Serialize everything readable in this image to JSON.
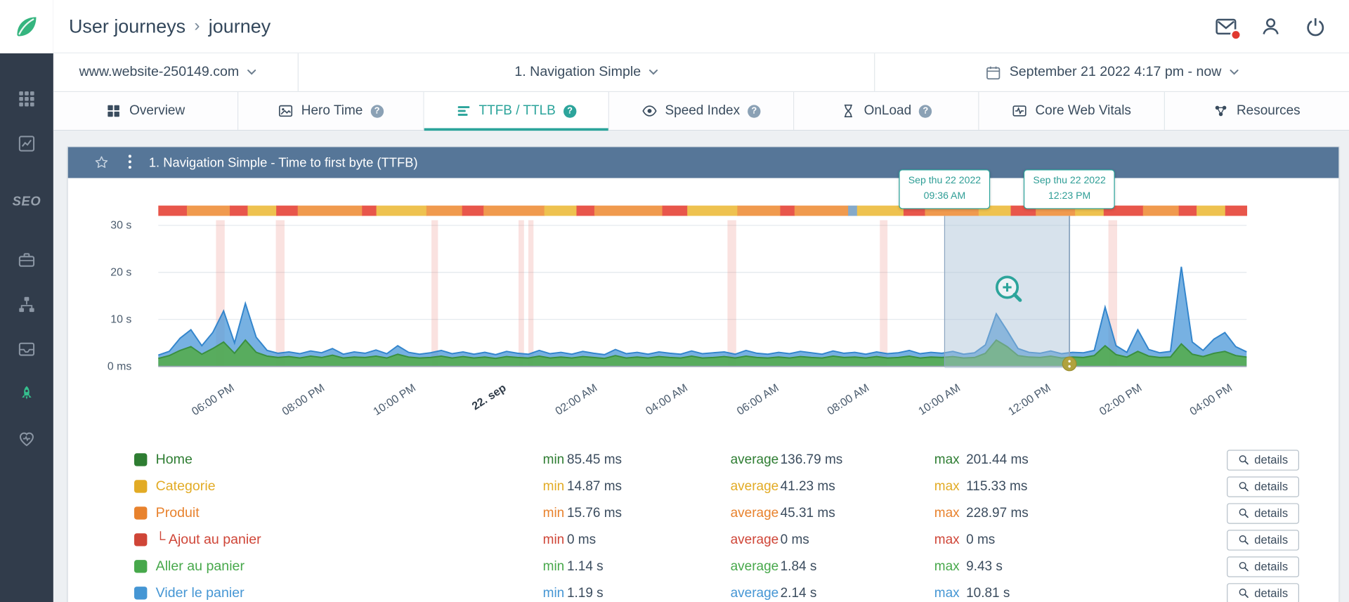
{
  "misc": {
    "help_glyph": "?",
    "indent_glyph": "└"
  },
  "colors": {
    "accent_teal": "#2ca49b",
    "sidebar_active_green": "#35c08e",
    "alert_red": "#e0392f",
    "panel_header_blue": "#567698"
  },
  "sidebar": {
    "seo_label": "SEO"
  },
  "header": {
    "breadcrumb_primary": "User journeys",
    "breadcrumb_separator": "›",
    "breadcrumb_current": "journey"
  },
  "toolbar": {
    "website": "www.website-250149.com",
    "scenario": "1. Navigation Simple",
    "date_range": "September 21 2022 4:17 pm - now"
  },
  "tabs": [
    {
      "label": "Overview",
      "active": false,
      "help": false
    },
    {
      "label": "Hero Time",
      "active": false,
      "help": true
    },
    {
      "label": "TTFB / TTLB",
      "active": true,
      "help": true
    },
    {
      "label": "Speed Index",
      "active": false,
      "help": true
    },
    {
      "label": "OnLoad",
      "active": false,
      "help": true
    },
    {
      "label": "Core Web Vitals",
      "active": false,
      "help": false
    },
    {
      "label": "Resources",
      "active": false,
      "help": false
    }
  ],
  "panel": {
    "title": "1. Navigation Simple - Time to first byte (TTFB)"
  },
  "chart_data": {
    "type": "area",
    "title": "1. Navigation Simple - Time to first byte (TTFB)",
    "unit": "seconds",
    "y_max_seconds": 30,
    "y_ticks": [
      {
        "label": "30 s",
        "v": 30
      },
      {
        "label": "20 s",
        "v": 20
      },
      {
        "label": "10 s",
        "v": 10
      },
      {
        "label": "0 ms",
        "v": 0
      }
    ],
    "x_ticks": [
      {
        "label": "06:00 PM",
        "f": 0.0704
      },
      {
        "label": "08:00 PM",
        "f": 0.1534
      },
      {
        "label": "10:00 PM",
        "f": 0.2372
      },
      {
        "label": "22. sep",
        "f": 0.3202,
        "strong": true
      },
      {
        "label": "02:00 AM",
        "f": 0.404
      },
      {
        "label": "04:00 AM",
        "f": 0.487
      },
      {
        "label": "06:00 AM",
        "f": 0.5708
      },
      {
        "label": "08:00 AM",
        "f": 0.6538
      },
      {
        "label": "10:00 AM",
        "f": 0.7376
      },
      {
        "label": "12:00 PM",
        "f": 0.8206
      },
      {
        "label": "02:00 PM",
        "f": 0.9044
      },
      {
        "label": "04:00 PM",
        "f": 0.9874
      }
    ],
    "selection": {
      "start_f": 0.7225,
      "end_f": 0.8372,
      "start_tooltip_line1": "Sep thu 22 2022",
      "start_tooltip_line2": "09:36 AM",
      "end_tooltip_line1": "Sep thu 22 2022",
      "end_tooltip_line2": "12:23 PM"
    },
    "zoom_icon": {
      "f": 0.78,
      "y": 127
    },
    "colors": {
      "error_band": "rgba(232,108,98,0.20)",
      "selection": "rgba(167,190,212,0.45)",
      "selection_edge": "#8ca6c0",
      "accent": "#2ca49b",
      "handle": "#b0a23e",
      "grid": "#e3e8ed",
      "axis": "#97a4b2"
    },
    "error_bands": [
      {
        "f": 0.053,
        "wf": 0.008
      },
      {
        "f": 0.108,
        "wf": 0.008
      },
      {
        "f": 0.251,
        "wf": 0.006
      },
      {
        "f": 0.331,
        "wf": 0.005
      },
      {
        "f": 0.34,
        "wf": 0.004
      },
      {
        "f": 0.523,
        "wf": 0.008
      },
      {
        "f": 0.663,
        "wf": 0.007
      },
      {
        "f": 0.873,
        "wf": 0.008
      }
    ],
    "strip_segments": [
      {
        "w": 1.6,
        "c": "#e8564b"
      },
      {
        "w": 2.4,
        "c": "#f09a4e"
      },
      {
        "w": 1.0,
        "c": "#e8564b"
      },
      {
        "w": 1.6,
        "c": "#eec24f"
      },
      {
        "w": 1.2,
        "c": "#e8564b"
      },
      {
        "w": 3.6,
        "c": "#f09a4e"
      },
      {
        "w": 0.8,
        "c": "#e8564b"
      },
      {
        "w": 2.8,
        "c": "#eec24f"
      },
      {
        "w": 2.0,
        "c": "#f09a4e"
      },
      {
        "w": 1.2,
        "c": "#e8564b"
      },
      {
        "w": 3.4,
        "c": "#f09a4e"
      },
      {
        "w": 1.8,
        "c": "#eec24f"
      },
      {
        "w": 1.0,
        "c": "#e8564b"
      },
      {
        "w": 3.8,
        "c": "#f09a4e"
      },
      {
        "w": 1.4,
        "c": "#e8564b"
      },
      {
        "w": 2.8,
        "c": "#eec24f"
      },
      {
        "w": 2.4,
        "c": "#f09a4e"
      },
      {
        "w": 0.8,
        "c": "#e8564b"
      },
      {
        "w": 3.0,
        "c": "#f09a4e"
      },
      {
        "w": 0.5,
        "c": "#85a9c9"
      },
      {
        "w": 2.6,
        "c": "#eec24f"
      },
      {
        "w": 1.2,
        "c": "#e8564b"
      },
      {
        "w": 3.0,
        "c": "#f09a4e"
      },
      {
        "w": 1.8,
        "c": "#eec24f"
      },
      {
        "w": 1.4,
        "c": "#e8564b"
      },
      {
        "w": 2.2,
        "c": "#f09a4e"
      },
      {
        "w": 1.6,
        "c": "#eec24f"
      },
      {
        "w": 2.2,
        "c": "#e8564b"
      },
      {
        "w": 2.0,
        "c": "#f09a4e"
      },
      {
        "w": 1.0,
        "c": "#e8564b"
      },
      {
        "w": 1.6,
        "c": "#eec24f"
      },
      {
        "w": 1.2,
        "c": "#e8564b"
      }
    ],
    "series": [
      {
        "name": "blue",
        "color": "#3385cc",
        "fill": "rgba(74,151,216,0.75)",
        "values": [
          2.4,
          3.2,
          6.0,
          7.8,
          4.4,
          7.2,
          11.8,
          5.0,
          13.4,
          6.2,
          3.4,
          2.8,
          3.1,
          2.7,
          3.3,
          2.9,
          3.8,
          2.6,
          3.1,
          2.8,
          3.5,
          2.7,
          4.4,
          3.0,
          2.6,
          2.9,
          3.4,
          2.7,
          3.1,
          2.6,
          3.0,
          2.5,
          3.2,
          2.8,
          2.6,
          3.4,
          2.7,
          3.0,
          2.6,
          3.2,
          2.8,
          2.5,
          3.6,
          2.7,
          3.0,
          2.6,
          3.1,
          2.8,
          2.6,
          3.3,
          2.7,
          2.9,
          3.1,
          2.6,
          3.4,
          2.8,
          2.6,
          3.0,
          2.7,
          3.2,
          2.9,
          2.6,
          3.3,
          2.8,
          3.0,
          2.6,
          3.1,
          2.7,
          2.9,
          3.4,
          2.7,
          3.0,
          2.8,
          3.2,
          2.6,
          2.9,
          4.6,
          11.2,
          7.6,
          3.8,
          3.0,
          2.8,
          3.3,
          2.7,
          3.0,
          2.9,
          3.4,
          12.6,
          4.4,
          3.0,
          7.8,
          3.6,
          2.9,
          3.2,
          21.2,
          5.2,
          3.4,
          5.8,
          7.2,
          4.2,
          3.1
        ]
      },
      {
        "name": "green",
        "color": "#3a8f40",
        "fill": "rgba(86,171,83,0.92)",
        "values": [
          1.7,
          2.3,
          3.4,
          4.2,
          2.6,
          3.8,
          5.2,
          2.8,
          5.6,
          3.0,
          2.2,
          1.9,
          2.1,
          1.8,
          2.2,
          1.9,
          2.4,
          1.8,
          2.0,
          1.9,
          2.2,
          1.8,
          2.6,
          2.0,
          1.8,
          1.9,
          2.2,
          1.8,
          2.1,
          1.8,
          2.0,
          1.7,
          2.1,
          1.9,
          1.8,
          2.2,
          1.8,
          2.0,
          1.8,
          2.1,
          1.9,
          1.7,
          2.3,
          1.8,
          2.0,
          1.8,
          2.1,
          1.9,
          1.8,
          2.2,
          1.8,
          1.9,
          2.1,
          1.8,
          2.2,
          1.9,
          1.8,
          2.0,
          1.8,
          2.1,
          1.9,
          1.8,
          2.2,
          1.9,
          2.0,
          1.8,
          2.1,
          1.8,
          1.9,
          2.2,
          1.8,
          2.0,
          1.9,
          2.1,
          1.8,
          1.9,
          2.8,
          5.6,
          4.2,
          2.3,
          2.0,
          1.9,
          2.2,
          1.8,
          2.0,
          1.9,
          2.3,
          4.4,
          2.5,
          2.0,
          3.2,
          2.2,
          1.9,
          2.0,
          4.8,
          2.6,
          2.1,
          2.8,
          3.2,
          2.3,
          2.0
        ]
      }
    ]
  },
  "legend": {
    "min_label": "min",
    "average_label": "average",
    "max_label": "max",
    "details_label": "details",
    "rows": [
      {
        "label": "Home",
        "color": "#2e7d32",
        "indent": false,
        "min": "85.45 ms",
        "average": "136.79 ms",
        "max": "201.44 ms"
      },
      {
        "label": "Categorie",
        "color": "#e2ab25",
        "indent": false,
        "min": "14.87 ms",
        "average": "41.23 ms",
        "max": "115.33 ms"
      },
      {
        "label": "Produit",
        "color": "#e8822d",
        "indent": false,
        "min": "15.76 ms",
        "average": "45.31 ms",
        "max": "228.97 ms"
      },
      {
        "label": "Ajout au panier",
        "color": "#cf4537",
        "indent": true,
        "min": "0 ms",
        "average": "0 ms",
        "max": "0 ms"
      },
      {
        "label": "Aller au panier",
        "color": "#47a84b",
        "indent": false,
        "min": "1.14 s",
        "average": "1.84 s",
        "max": "9.43 s"
      },
      {
        "label": "Vider le panier",
        "color": "#4596d4",
        "indent": false,
        "min": "1.19 s",
        "average": "2.14 s",
        "max": "10.81 s"
      }
    ]
  }
}
